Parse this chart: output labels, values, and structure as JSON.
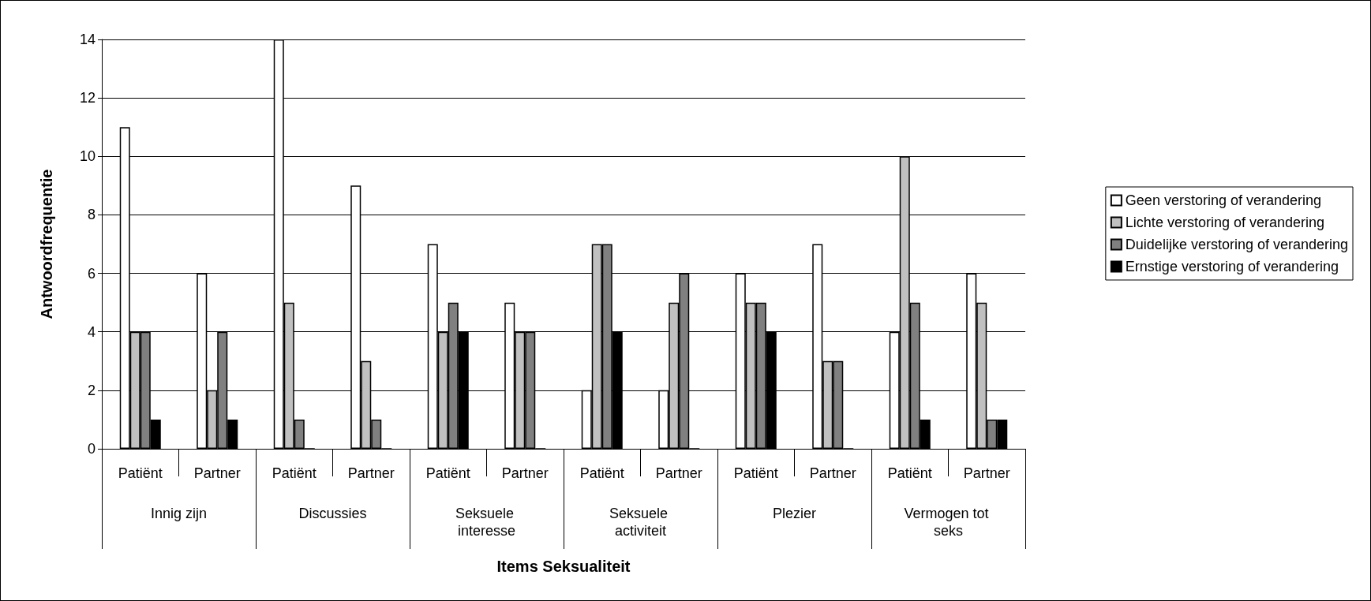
{
  "chart_data": {
    "type": "bar",
    "xlabel": "Items Seksualiteit",
    "ylabel": "Antwoordfrequentie",
    "categories": [
      "Patiënt",
      "Partner",
      "Patiënt",
      "Partner",
      "Patiënt",
      "Partner",
      "Patiënt",
      "Partner",
      "Patiënt",
      "Partner",
      "Patiënt",
      "Partner"
    ],
    "annotations": [
      "Innig zijn",
      "Discussies",
      "Seksuele interesse",
      "Seksuele activiteit",
      "Plezier",
      "Vermogen tot seks"
    ],
    "series": [
      {
        "name": "Geen verstoring of verandering",
        "color": "#ffffff",
        "values": [
          11,
          6,
          14,
          9,
          7,
          5,
          2,
          2,
          6,
          7,
          4,
          6
        ]
      },
      {
        "name": "Lichte verstoring of verandering",
        "color": "#c0c0c0",
        "values": [
          4,
          2,
          5,
          3,
          4,
          4,
          7,
          5,
          5,
          3,
          10,
          5
        ]
      },
      {
        "name": "Duidelijke verstoring of verandering",
        "color": "#808080",
        "values": [
          4,
          4,
          1,
          1,
          5,
          4,
          7,
          6,
          5,
          3,
          5,
          1
        ]
      },
      {
        "name": "Ernstige verstoring of verandering",
        "color": "#000000",
        "values": [
          1,
          1,
          0,
          0,
          4,
          0,
          4,
          0,
          4,
          0,
          1,
          1
        ]
      }
    ],
    "ylim": [
      0,
      14
    ],
    "yticks": [
      0,
      2,
      4,
      6,
      8,
      10,
      12,
      14
    ],
    "grid": "y",
    "legend": "right"
  }
}
